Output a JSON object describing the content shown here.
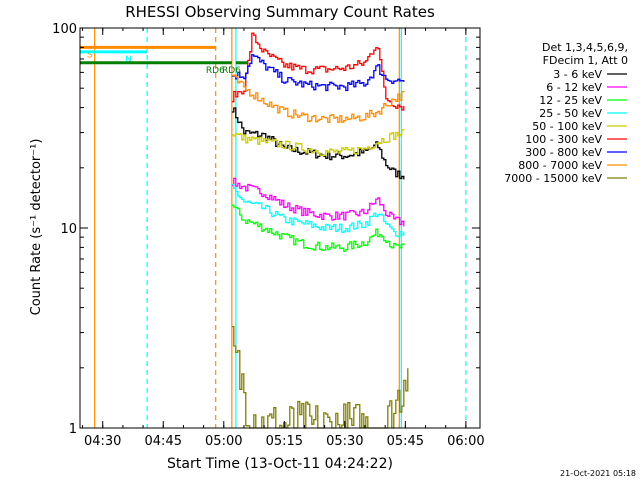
{
  "chart_data": {
    "type": "line",
    "title": "RHESSI Observing Summary Count Rates",
    "xlabel": "Start Time (13-Oct-11 04:24:22)",
    "ylabel": "Count Rate (s⁻¹ detector⁻¹)",
    "yscale": "log",
    "ylim": [
      1,
      100
    ],
    "xlim": [
      "04:24:22",
      "06:03:30"
    ],
    "x_ticks": [
      "04:30",
      "04:45",
      "05:00",
      "05:15",
      "05:30",
      "05:45",
      "06:00"
    ],
    "y_ticks": [
      "1",
      "10",
      "100"
    ],
    "footer": "21-Oct-2021 05:18",
    "legend_position": "right",
    "legend_header": [
      "Det 1,3,4,5,6,9,",
      "FDecim 1, Att 0"
    ],
    "series": [
      {
        "name": "3 - 6 keV",
        "color": "#000000",
        "x": [
          "05:02",
          "05:05",
          "05:10",
          "05:15",
          "05:20",
          "05:25",
          "05:30",
          "05:35",
          "05:38",
          "05:40",
          "05:42",
          "05:45"
        ],
        "values": [
          40,
          30,
          29,
          25,
          24,
          23,
          23,
          24,
          26,
          21,
          19,
          18
        ]
      },
      {
        "name": "6 - 12 keV",
        "color": "#ff00ff",
        "x": [
          "05:02",
          "05:05",
          "05:10",
          "05:15",
          "05:20",
          "05:25",
          "05:30",
          "05:35",
          "05:38",
          "05:40",
          "05:42",
          "05:45"
        ],
        "values": [
          17,
          16,
          15,
          13,
          12,
          11.5,
          11.5,
          12,
          14,
          12,
          11,
          10.5
        ]
      },
      {
        "name": "12 - 25 keV",
        "color": "#00ff00",
        "x": [
          "05:02",
          "05:05",
          "05:10",
          "05:15",
          "05:20",
          "05:25",
          "05:30",
          "05:35",
          "05:38",
          "05:40",
          "05:42",
          "05:45"
        ],
        "values": [
          13,
          11,
          10,
          9,
          8.3,
          8,
          8,
          8.5,
          9.5,
          9,
          8,
          8
        ]
      },
      {
        "name": "25 - 50 keV",
        "color": "#00ffff",
        "x": [
          "05:02",
          "05:05",
          "05:10",
          "05:15",
          "05:20",
          "05:25",
          "05:30",
          "05:35",
          "05:38",
          "05:40",
          "05:42",
          "05:45"
        ],
        "values": [
          16,
          13.5,
          12.5,
          11,
          10.5,
          10,
          10,
          10.5,
          12,
          10.5,
          9.5,
          9.5
        ]
      },
      {
        "name": "50 - 100 keV",
        "color": "#cccc00",
        "x": [
          "05:02",
          "05:05",
          "05:10",
          "05:15",
          "05:20",
          "05:25",
          "05:30",
          "05:35",
          "05:38",
          "05:40",
          "05:42",
          "05:45"
        ],
        "values": [
          30,
          28,
          27,
          26,
          25,
          24,
          24,
          25,
          27,
          28,
          29,
          30
        ]
      },
      {
        "name": "100 - 300 keV",
        "color": "#ff0000",
        "x": [
          "05:02",
          "05:05",
          "05:07",
          "05:10",
          "05:15",
          "05:20",
          "05:25",
          "05:30",
          "05:35",
          "05:38",
          "05:40",
          "05:42",
          "05:45"
        ],
        "values": [
          45,
          50,
          92,
          75,
          65,
          62,
          62,
          63,
          67,
          85,
          45,
          42,
          40
        ]
      },
      {
        "name": "300 - 800 keV",
        "color": "#0000ff",
        "x": [
          "05:02",
          "05:05",
          "05:07",
          "05:10",
          "05:15",
          "05:20",
          "05:25",
          "05:30",
          "05:35",
          "05:38",
          "05:40",
          "05:42",
          "05:45"
        ],
        "values": [
          58,
          58,
          73,
          65,
          55,
          52,
          51,
          51,
          53,
          64,
          56,
          55,
          54
        ]
      },
      {
        "name": "800 - 7000 keV",
        "color": "#ff8c00",
        "x": [
          "05:02",
          "05:05",
          "05:10",
          "05:15",
          "05:20",
          "05:25",
          "05:30",
          "05:35",
          "05:38",
          "05:40",
          "05:42",
          "05:45"
        ],
        "values": [
          57,
          50,
          43,
          38,
          36,
          35,
          35,
          36,
          38,
          41,
          44,
          47
        ]
      },
      {
        "name": "7000 - 15000 keV",
        "color": "#808000",
        "x": [
          "05:02",
          "05:04",
          "05:06",
          "05:08",
          "05:10",
          "05:40",
          "05:42",
          "05:44",
          "05:46"
        ],
        "values": [
          2.5,
          1.8,
          1.3,
          1.1,
          1,
          1,
          1.2,
          1.6,
          2.5
        ]
      }
    ],
    "flags": [
      {
        "label": "S",
        "color": "#ff8c00",
        "y": 80,
        "start": "04:24:22",
        "end": "04:58:00"
      },
      {
        "label": "N",
        "color": "#00ffff",
        "y": 76,
        "start": "04:24:22",
        "end": "04:41:00"
      },
      {
        "label": "RD6",
        "color": "#007f00",
        "y": 67,
        "start": "04:24:22",
        "end": "05:02:00"
      },
      {
        "label": "RD6",
        "color": "#007f00",
        "y": 67,
        "start": "05:03:00",
        "end": "05:06:00"
      }
    ],
    "vertical_markers": [
      {
        "time": "04:28:00",
        "color": "#ff8c00",
        "style": "solid"
      },
      {
        "time": "04:41:00",
        "color": "#00ffff",
        "style": "dashed"
      },
      {
        "time": "04:58:00",
        "color": "#ff8c00",
        "style": "dashed"
      },
      {
        "time": "05:02:00",
        "color": "#ff8c00",
        "style": "solid"
      },
      {
        "time": "05:03:00",
        "color": "#00ffff",
        "style": "solid"
      },
      {
        "time": "05:43:30",
        "color": "#ff8c00",
        "style": "solid"
      },
      {
        "time": "05:44:00",
        "color": "#00ffff",
        "style": "solid"
      },
      {
        "time": "06:00:00",
        "color": "#00ffff",
        "style": "dashed"
      }
    ]
  }
}
